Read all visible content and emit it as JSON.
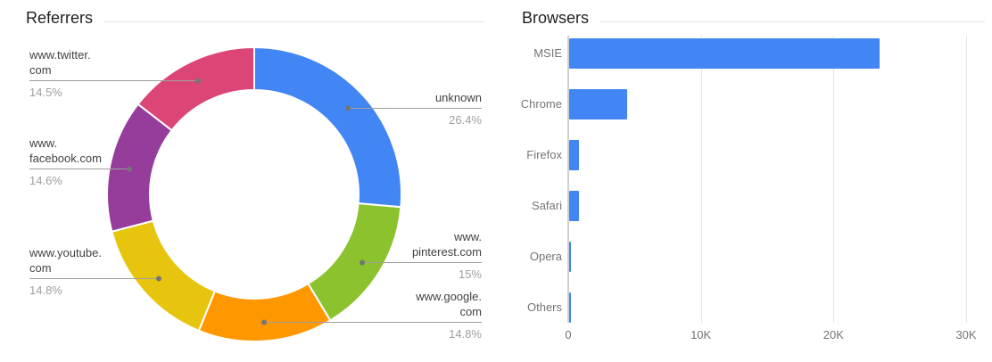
{
  "panels": {
    "referrers": {
      "title": "Referrers"
    },
    "browsers": {
      "title": "Browsers"
    }
  },
  "chart_data": [
    {
      "type": "pie",
      "title": "Referrers",
      "donut": true,
      "start_angle_deg": 0,
      "direction": "clockwise",
      "legend_position": "outside-callouts",
      "slices": [
        {
          "label": "unknown",
          "label_lines": [
            "unknown"
          ],
          "value_pct": 26.4,
          "pct_label": "26.4%",
          "color": "#4285F4",
          "label_side": "right"
        },
        {
          "label": "www.pinterest.com",
          "label_lines": [
            "www.",
            "pinterest.com"
          ],
          "value_pct": 15.0,
          "pct_label": "15%",
          "color": "#8CC22D",
          "label_side": "right"
        },
        {
          "label": "www.google.com",
          "label_lines": [
            "www.google.",
            "com"
          ],
          "value_pct": 14.8,
          "pct_label": "14.8%",
          "color": "#FF9800",
          "label_side": "right"
        },
        {
          "label": "www.youtube.com",
          "label_lines": [
            "www.youtube.",
            "com"
          ],
          "value_pct": 14.8,
          "pct_label": "14.8%",
          "color": "#E7C50F",
          "label_side": "left"
        },
        {
          "label": "www.facebook.com",
          "label_lines": [
            "www.",
            "facebook.com"
          ],
          "value_pct": 14.6,
          "pct_label": "14.6%",
          "color": "#963C9B",
          "label_side": "left"
        },
        {
          "label": "www.twitter.com",
          "label_lines": [
            "www.twitter.",
            "com"
          ],
          "value_pct": 14.5,
          "pct_label": "14.5%",
          "color": "#DC4677",
          "label_side": "left"
        }
      ]
    },
    {
      "type": "bar",
      "title": "Browsers",
      "orientation": "horizontal",
      "categories": [
        "MSIE",
        "Chrome",
        "Firefox",
        "Safari",
        "Opera",
        "Others"
      ],
      "values": [
        23400,
        4400,
        750,
        720,
        150,
        100
      ],
      "bar_color": "#4285F4",
      "xlim": [
        0,
        30000
      ],
      "x_ticks": [
        {
          "value": 0,
          "label": "0"
        },
        {
          "value": 10000,
          "label": "10K"
        },
        {
          "value": 20000,
          "label": "20K"
        },
        {
          "value": 30000,
          "label": "30K"
        }
      ],
      "grid": true,
      "legend_position": "none"
    }
  ],
  "colors": {
    "bar_blue": "#4285F4",
    "axis_line": "#cfcfcf",
    "grid_line": "#e6e6e6",
    "title_text": "#1f1f1f",
    "divider": "#e3e3e3",
    "slice_label_text": "#424242",
    "percent_text": "#9e9e9e",
    "tick_text": "#757575",
    "leader_line": "#9e9e9e",
    "leader_dot": "#757575",
    "slice_separator": "#ffffff"
  }
}
